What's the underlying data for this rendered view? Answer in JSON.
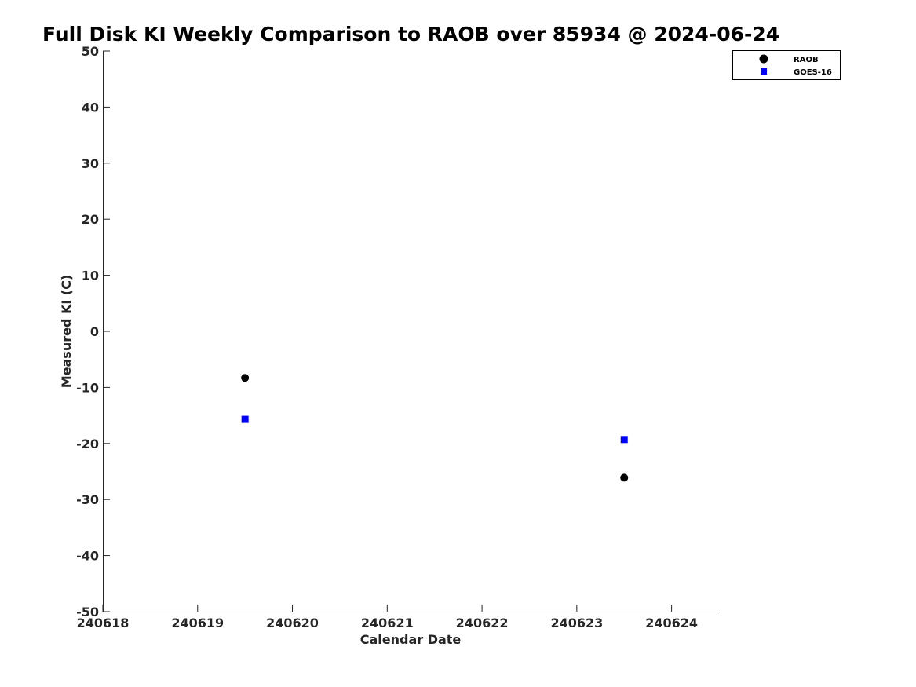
{
  "chart_data": {
    "type": "scatter",
    "title": "Full Disk KI Weekly Comparison to RAOB over 85934 @ 2024-06-24",
    "xlabel": "Calendar Date",
    "ylabel": "Measured KI (C)",
    "xlim": [
      240618,
      240624.5
    ],
    "ylim": [
      -50,
      50
    ],
    "x_ticks": [
      240618,
      240619,
      240620,
      240621,
      240622,
      240623,
      240624
    ],
    "x_tick_labels": [
      "240618",
      "240619",
      "240620",
      "240621",
      "240622",
      "240623",
      "240624"
    ],
    "y_ticks": [
      50,
      40,
      30,
      20,
      10,
      0,
      -10,
      -20,
      -30,
      -40,
      -50
    ],
    "y_tick_labels": [
      "50",
      "40",
      "30",
      "20",
      "10",
      "0",
      "-10",
      "-20",
      "-30",
      "-40",
      "-50"
    ],
    "grid": false,
    "legend_position": "top-right",
    "series": [
      {
        "name": "RAOB",
        "marker": "circle",
        "color": "#000000",
        "points": [
          {
            "x": 240619.5,
            "y": -8.3
          },
          {
            "x": 240623.5,
            "y": -26.1
          }
        ]
      },
      {
        "name": "GOES-16",
        "marker": "square",
        "color": "#0000ff",
        "points": [
          {
            "x": 240619.5,
            "y": -15.7
          },
          {
            "x": 240623.5,
            "y": -19.3
          }
        ]
      }
    ]
  }
}
